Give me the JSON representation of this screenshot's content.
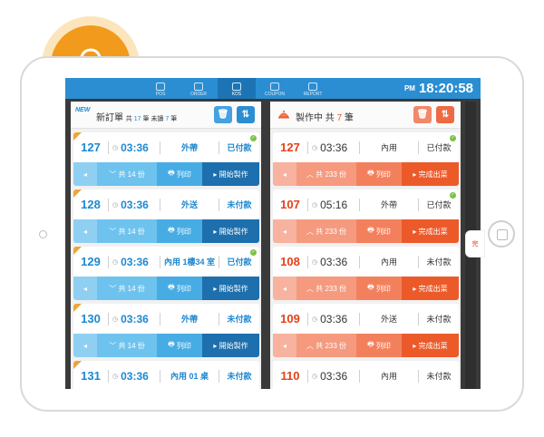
{
  "nav": {
    "items": [
      {
        "label": "POS"
      },
      {
        "label": "ORDER"
      },
      {
        "label": "KDS"
      },
      {
        "label": "COUPON"
      },
      {
        "label": "REPORT"
      }
    ],
    "active": "KDS"
  },
  "clock": {
    "ampm": "PM",
    "time": "18:20:58"
  },
  "new_orders": {
    "badge": "NEW",
    "title": "新訂單",
    "total_label": "共",
    "total": "17",
    "unit": "筆",
    "pending_label": "未讀",
    "pending": "7",
    "pending_unit": "筆",
    "orders": [
      {
        "num": "127",
        "time": "03:36",
        "type": "外帶",
        "pay": "已付款",
        "count": "共 14 份",
        "print": "列印",
        "action": "開始製作",
        "paid": true
      },
      {
        "num": "128",
        "time": "03:36",
        "type": "外送",
        "pay": "未付款",
        "count": "共 14 份",
        "print": "列印",
        "action": "開始製作",
        "paid": false
      },
      {
        "num": "129",
        "time": "03:36",
        "type": "內用 1樓34 室",
        "pay": "已付款",
        "count": "共 14 份",
        "print": "列印",
        "action": "開始製作",
        "paid": true
      },
      {
        "num": "130",
        "time": "03:36",
        "type": "外帶",
        "pay": "未付款",
        "count": "共 14 份",
        "print": "列印",
        "action": "開始製作",
        "paid": false
      },
      {
        "num": "131",
        "time": "03:36",
        "type": "內用 01 桌",
        "pay": "未付款",
        "count": "",
        "print": "",
        "action": "",
        "paid": false
      }
    ]
  },
  "in_progress": {
    "title": "製作中",
    "total_label": "共",
    "total": "7",
    "unit": "筆",
    "orders": [
      {
        "num": "127",
        "time": "03:36",
        "type": "內用",
        "pay": "已付款",
        "count": "共 233 份",
        "print": "列印",
        "action": "完成出菜",
        "paid": true
      },
      {
        "num": "107",
        "time": "05:16",
        "type": "外帶",
        "pay": "已付款",
        "count": "共 233 份",
        "print": "列印",
        "action": "完成出菜",
        "paid": true
      },
      {
        "num": "108",
        "time": "03:36",
        "type": "內用",
        "pay": "未付款",
        "count": "共 233 份",
        "print": "列印",
        "action": "完成出菜",
        "paid": false
      },
      {
        "num": "109",
        "time": "03:36",
        "type": "外送",
        "pay": "未付款",
        "count": "共 233 份",
        "print": "列印",
        "action": "完成出菜",
        "paid": false
      },
      {
        "num": "110",
        "time": "03:36",
        "type": "內用",
        "pay": "未付款",
        "count": "",
        "print": "",
        "action": "",
        "paid": false
      }
    ]
  },
  "side_tag": "完",
  "colors": {
    "blue": "#2b8ed3",
    "orange": "#ec5a2a",
    "bell": "#f19a1b"
  }
}
